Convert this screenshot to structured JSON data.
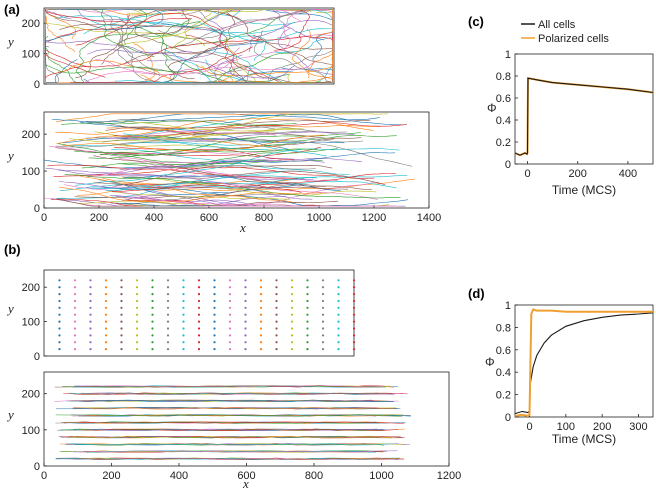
{
  "panel_labels": {
    "a": "(a)",
    "b": "(b)",
    "c": "(c)",
    "d": "(d)"
  },
  "colors": {
    "traj": [
      "#1f77b4",
      "#ff7f0e",
      "#2ca02c",
      "#d62728",
      "#9467bd",
      "#bcbd22",
      "#17becf",
      "#e377c2",
      "#8c564b",
      "#7f7f7f"
    ],
    "all_cells": "#1a1a1a",
    "polarized": "#f0a030"
  },
  "chart_data": [
    {
      "id": "a-top",
      "type": "scatter",
      "xlabel": "",
      "ylabel": "y",
      "xlim": [
        0,
        1000
      ],
      "ylim": [
        0,
        250
      ],
      "yticks": [
        "0",
        "100",
        "200"
      ],
      "series_count": 90
    },
    {
      "id": "a-bottom",
      "type": "scatter",
      "xlabel": "x",
      "ylabel": "y",
      "xlim": [
        0,
        1400
      ],
      "ylim": [
        0,
        260
      ],
      "xticks": [
        "0",
        "200",
        "400",
        "600",
        "800",
        "1000",
        "1200",
        "1400"
      ],
      "yticks": [
        "0",
        "100",
        "200"
      ],
      "series_count": 90
    },
    {
      "id": "b-top",
      "type": "scatter",
      "xlabel": "",
      "ylabel": "y",
      "xlim": [
        0,
        1000
      ],
      "ylim": [
        0,
        250
      ],
      "yticks": [
        "0",
        "100",
        "200"
      ],
      "grid_x": [
        50,
        1000,
        50
      ],
      "grid_y": [
        20,
        230,
        20
      ]
    },
    {
      "id": "b-bottom",
      "type": "scatter",
      "xlabel": "x",
      "ylabel": "y",
      "xlim": [
        0,
        1200
      ],
      "ylim": [
        0,
        260
      ],
      "xticks": [
        "0",
        "200",
        "400",
        "600",
        "800",
        "1000",
        "1200"
      ],
      "yticks": [
        "0",
        "100",
        "200"
      ],
      "rows_y": [
        20,
        40,
        60,
        80,
        100,
        120,
        140,
        160,
        180,
        200,
        220
      ]
    },
    {
      "id": "c",
      "type": "line",
      "xlabel": "Time (MCS)",
      "ylabel": "Φ",
      "xlim": [
        -50,
        500
      ],
      "ylim": [
        0,
        1
      ],
      "xticks": [
        "0",
        "200",
        "400"
      ],
      "yticks": [
        "0",
        "0.2",
        "0.4",
        "0.6",
        "0.8",
        "1"
      ],
      "legend": [
        "All cells",
        "Polarized cells"
      ],
      "legend_position": "top-left",
      "series": [
        {
          "name": "All cells",
          "x": [
            -50,
            -30,
            -10,
            -2,
            0,
            2,
            50,
            100,
            200,
            300,
            400,
            500
          ],
          "values": [
            0.1,
            0.08,
            0.1,
            0.09,
            0.1,
            0.78,
            0.76,
            0.74,
            0.72,
            0.7,
            0.68,
            0.65
          ]
        },
        {
          "name": "Polarized cells",
          "x": [
            -50,
            -30,
            -10,
            -2,
            0,
            2,
            50,
            100,
            200,
            300,
            400,
            500
          ],
          "values": [
            0.1,
            0.08,
            0.1,
            0.09,
            0.1,
            0.78,
            0.76,
            0.74,
            0.72,
            0.7,
            0.68,
            0.65
          ]
        }
      ]
    },
    {
      "id": "d",
      "type": "line",
      "xlabel": "Time (MCS)",
      "ylabel": "Φ",
      "xlim": [
        -40,
        340
      ],
      "ylim": [
        0,
        1
      ],
      "xticks": [
        "0",
        "100",
        "200",
        "300"
      ],
      "yticks": [
        "0",
        "0.2",
        "0.4",
        "0.6",
        "0.8",
        "1"
      ],
      "series": [
        {
          "name": "All cells",
          "x": [
            -40,
            -20,
            -5,
            0,
            2,
            10,
            20,
            40,
            60,
            100,
            150,
            200,
            250,
            300,
            340
          ],
          "values": [
            0.03,
            0.05,
            0.04,
            0.05,
            0.3,
            0.45,
            0.55,
            0.66,
            0.73,
            0.81,
            0.86,
            0.89,
            0.91,
            0.92,
            0.93
          ]
        },
        {
          "name": "Polarized cells",
          "x": [
            -40,
            -20,
            -5,
            0,
            5,
            10,
            20,
            60,
            100,
            200,
            300,
            340
          ],
          "values": [
            0.01,
            0.02,
            0.01,
            0.02,
            0.92,
            0.96,
            0.95,
            0.95,
            0.94,
            0.94,
            0.94,
            0.94
          ]
        }
      ]
    }
  ]
}
